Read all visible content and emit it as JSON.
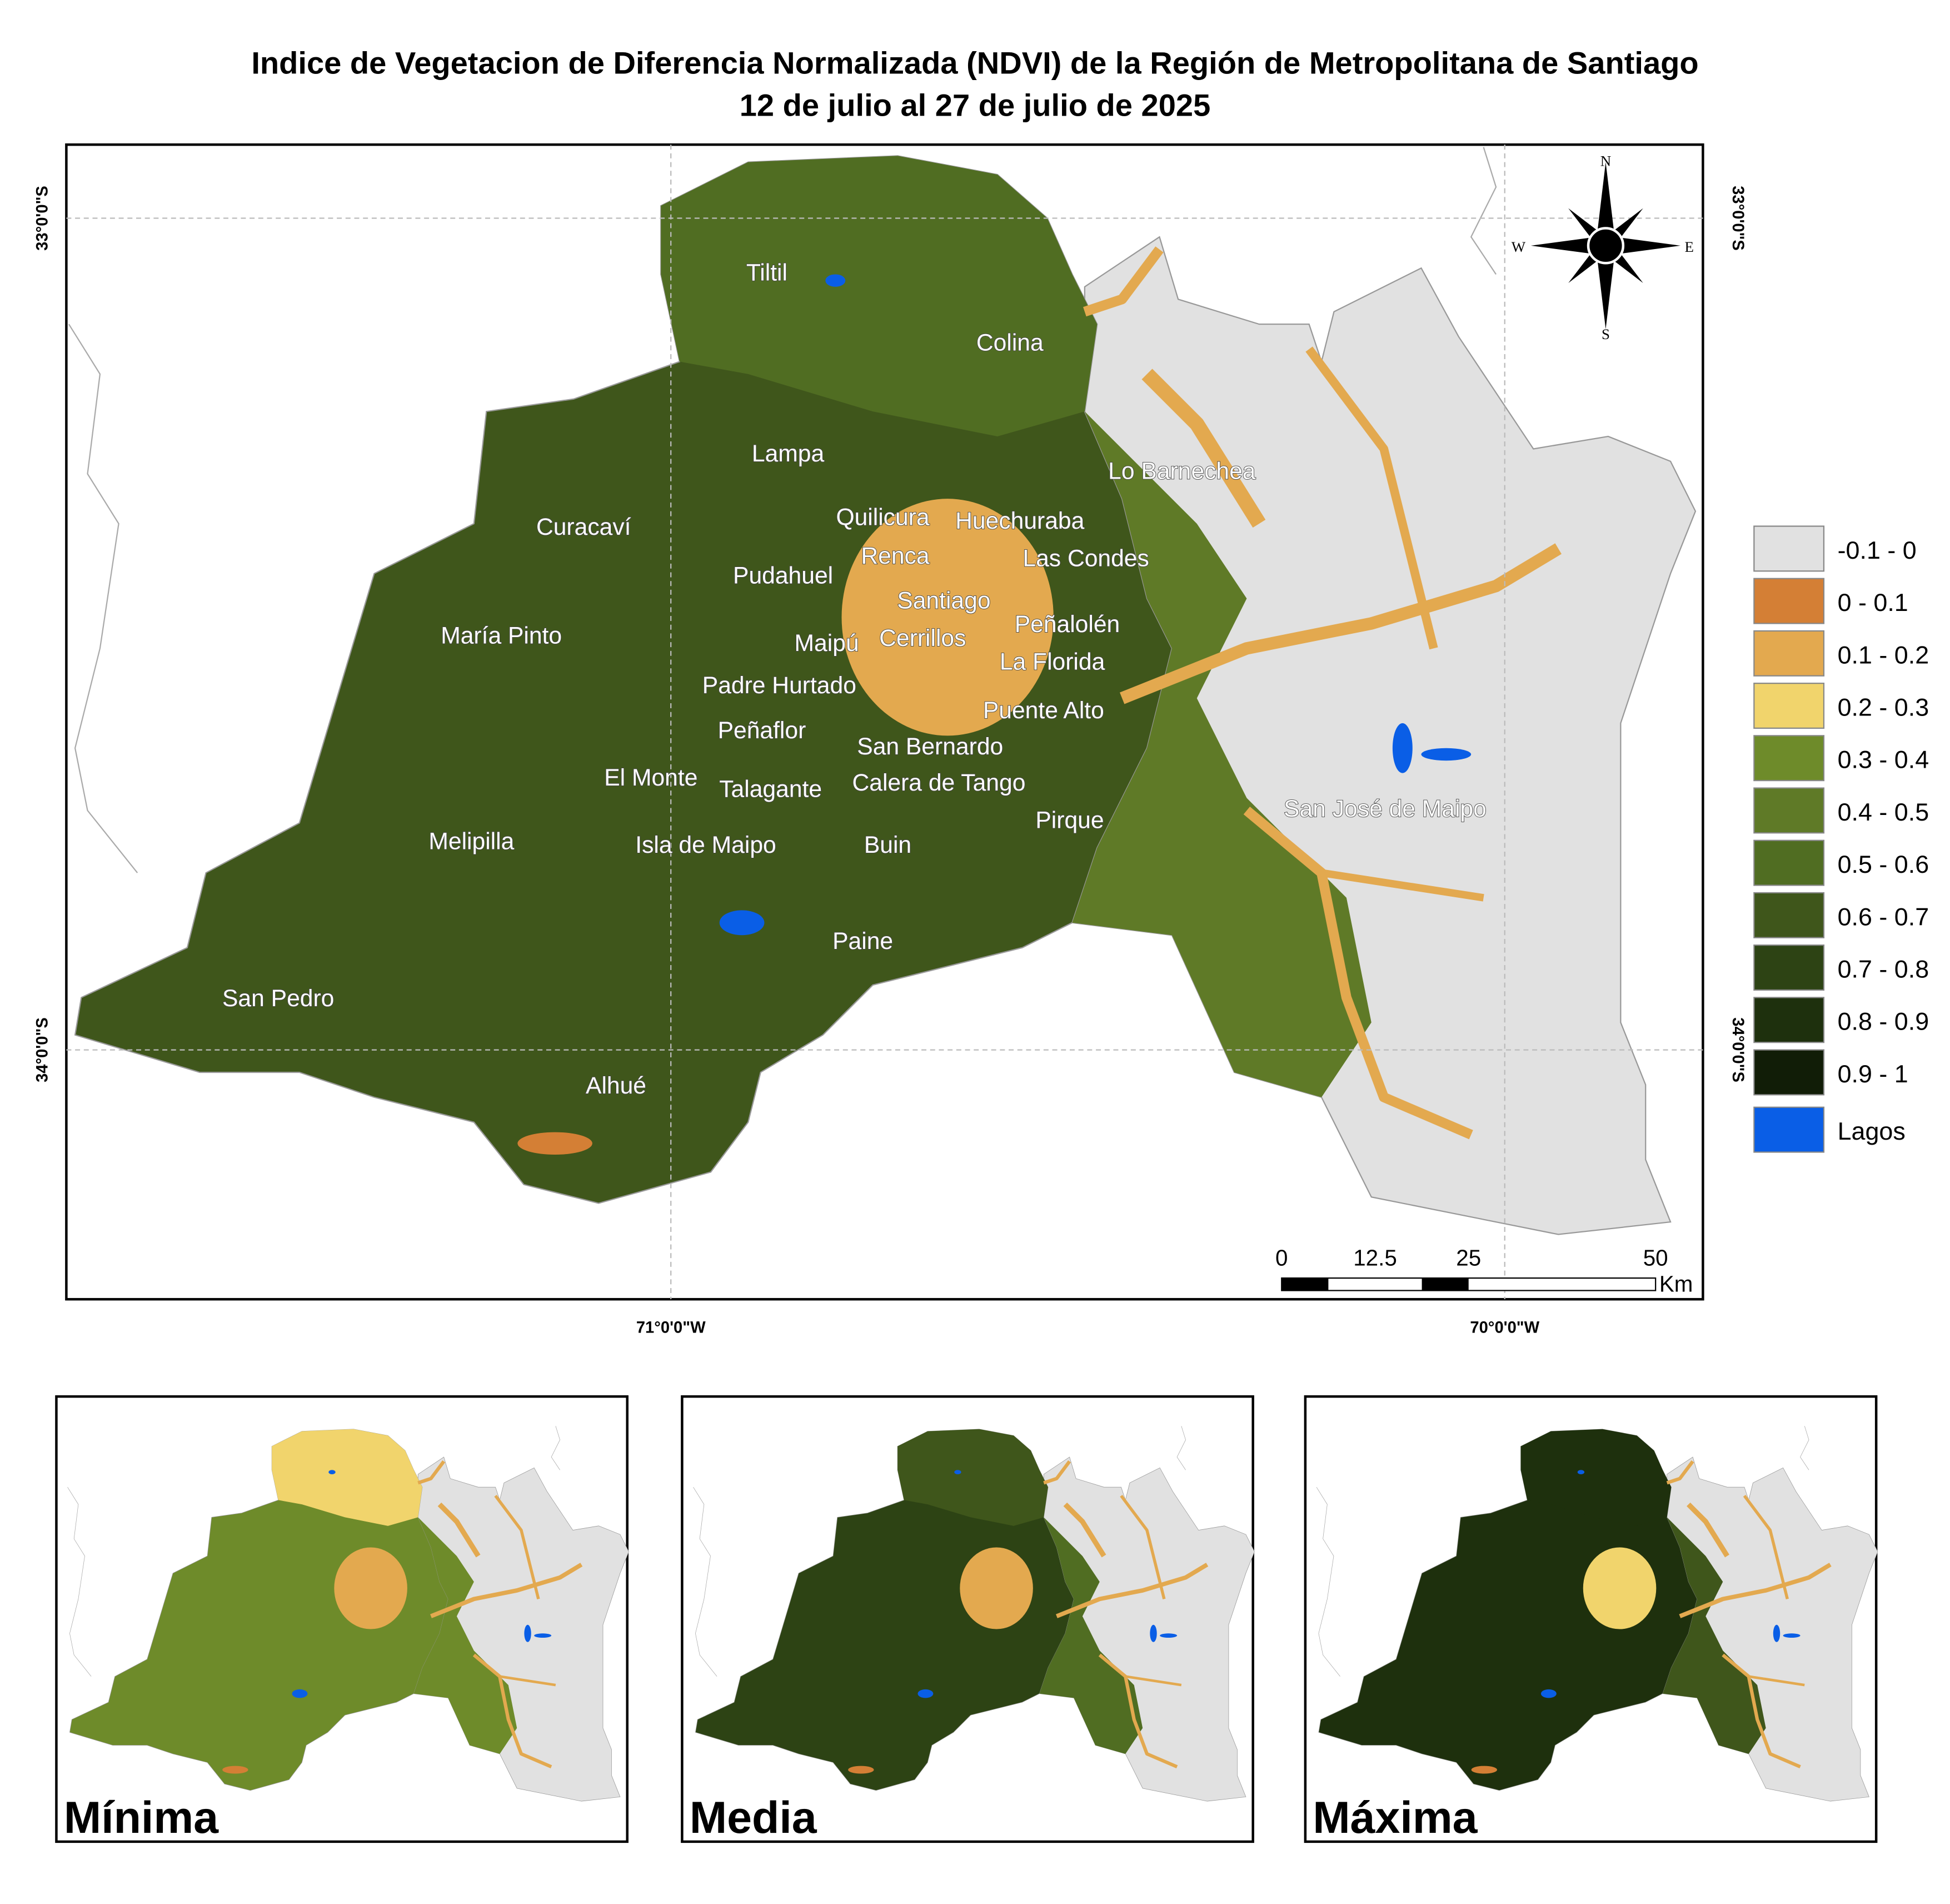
{
  "title": [
    "Indice de Vegetacion de Diferencia Normalizada (NDVI) de la Región de Metropolitana de Santiago",
    "12 de julio al 27 de julio de 2025"
  ],
  "map": {
    "communes": [
      "Tiltil",
      "Colina",
      "Lampa",
      "Lo Barnechea",
      "Quilicura",
      "Huechuraba",
      "Curacaví",
      "Renca",
      "Las Condes",
      "Pudahuel",
      "Santiago",
      "Peñalolén",
      "María Pinto",
      "Maipú",
      "Cerrillos",
      "La Florida",
      "Padre Hurtado",
      "Puente Alto",
      "Peñaflor",
      "San Bernardo",
      "El Monte",
      "Talagante",
      "Calera de Tango",
      "San José de Maipo",
      "Pirque",
      "Melipilla",
      "Isla de Maipo",
      "Buin",
      "Paine",
      "San Pedro",
      "Alhué"
    ],
    "latitude_labels": [
      "33°0'0\"S",
      "34°0'0\"S"
    ],
    "longitude_labels": [
      "71°0'0\"W",
      "70°0'0\"W"
    ],
    "compass": {
      "north": "N",
      "south": "S",
      "east": "E",
      "west": "W"
    },
    "scale_bar": {
      "ticks": [
        0,
        12.5,
        25,
        50
      ],
      "unit": "Km"
    }
  },
  "legend": [
    {
      "label": "-0.1 - 0",
      "color": "#e1e1e1"
    },
    {
      "label": "0 - 0.1",
      "color": "#d47f35"
    },
    {
      "label": "0.1 - 0.2",
      "color": "#e3a94f"
    },
    {
      "label": "0.2 - 0.3",
      "color": "#f1d46c"
    },
    {
      "label": "0.3 - 0.4",
      "color": "#6e8b2a"
    },
    {
      "label": "0.4 - 0.5",
      "color": "#5f7a27"
    },
    {
      "label": "0.5 - 0.6",
      "color": "#506d22"
    },
    {
      "label": "0.6 - 0.7",
      "color": "#3f561b"
    },
    {
      "label": "0.7 - 0.8",
      "color": "#2d4314"
    },
    {
      "label": "0.8 - 0.9",
      "color": "#1e300d"
    },
    {
      "label": "0.9 - 1",
      "color": "#111d07"
    },
    {
      "label": "Lagos",
      "color": "#0a5ee6"
    }
  ],
  "panels": [
    "Mínima",
    "Media",
    "Máxima"
  ]
}
